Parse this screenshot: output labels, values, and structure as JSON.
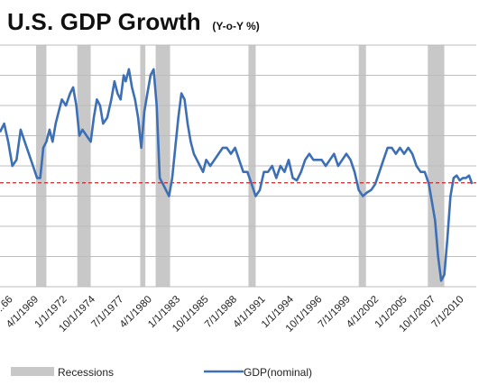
{
  "title": "U.S. GDP Growth",
  "subtitle": "(Y-o-Y %)",
  "chart_data": {
    "type": "line",
    "xlabel": "",
    "ylabel": "",
    "x_tick_labels": [
      "...66",
      "4/1/1969",
      "1/1/1972",
      "10/1/1974",
      "7/1/1977",
      "4/1/1980",
      "1/1/1983",
      "10/1/1985",
      "7/1/1988",
      "4/1/1991",
      "1/1/1994",
      "10/1/1996",
      "7/1/1999",
      "4/1/2002",
      "1/1/2005",
      "10/1/2007",
      "7/1/2010"
    ],
    "x_tick_years": [
      1966.75,
      1969.25,
      1972.0,
      1974.75,
      1977.5,
      1980.25,
      1983.0,
      1985.75,
      1988.5,
      1991.25,
      1994.0,
      1996.75,
      1999.5,
      2002.25,
      2005.0,
      2007.75,
      2010.5
    ],
    "xlim": [
      1966.4,
      2012.6
    ],
    "ylim": [
      -5,
      15
    ],
    "grid": "horizontal lines every 2.5",
    "reference_line": {
      "y": 3.6,
      "style": "dashed",
      "color": "#cc2222"
    },
    "recessions": [
      [
        1969.9,
        1970.9
      ],
      [
        1973.9,
        1975.2
      ],
      [
        1980.0,
        1980.5
      ],
      [
        1981.5,
        1982.9
      ],
      [
        1990.5,
        1991.2
      ],
      [
        2001.2,
        2001.9
      ],
      [
        2007.9,
        2009.5
      ]
    ],
    "series": [
      {
        "name": "GDP(nominal)",
        "color": "#3d6fb5",
        "x": [
          1966.4,
          1966.8,
          1967.2,
          1967.6,
          1968.0,
          1968.4,
          1968.8,
          1969.2,
          1969.6,
          1970.0,
          1970.3,
          1970.6,
          1970.9,
          1971.2,
          1971.5,
          1971.8,
          1972.1,
          1972.4,
          1972.8,
          1973.2,
          1973.5,
          1973.8,
          1974.1,
          1974.4,
          1974.8,
          1975.2,
          1975.5,
          1975.8,
          1976.1,
          1976.4,
          1976.8,
          1977.2,
          1977.5,
          1977.8,
          1978.1,
          1978.4,
          1978.6,
          1978.9,
          1979.2,
          1979.5,
          1979.8,
          1980.1,
          1980.4,
          1980.7,
          1981.0,
          1981.3,
          1981.6,
          1981.9,
          1982.2,
          1982.5,
          1982.8,
          1983.1,
          1983.4,
          1983.7,
          1984.0,
          1984.3,
          1984.6,
          1984.9,
          1985.2,
          1985.5,
          1985.8,
          1986.1,
          1986.4,
          1986.8,
          1987.2,
          1987.6,
          1988.0,
          1988.4,
          1988.8,
          1989.2,
          1989.6,
          1990.0,
          1990.4,
          1990.8,
          1991.2,
          1991.6,
          1992.0,
          1992.4,
          1992.8,
          1993.2,
          1993.6,
          1994.0,
          1994.4,
          1994.8,
          1995.2,
          1995.6,
          1996.0,
          1996.4,
          1996.8,
          1997.2,
          1997.6,
          1998.0,
          1998.4,
          1998.8,
          1999.2,
          1999.6,
          2000.0,
          2000.4,
          2000.8,
          2001.2,
          2001.6,
          2002.0,
          2002.4,
          2002.8,
          2003.2,
          2003.6,
          2004.0,
          2004.4,
          2004.8,
          2005.2,
          2005.6,
          2006.0,
          2006.4,
          2006.8,
          2007.2,
          2007.6,
          2008.0,
          2008.3,
          2008.6,
          2008.9,
          2009.2,
          2009.5,
          2009.8,
          2010.1,
          2010.4,
          2010.7,
          2011.0,
          2011.3,
          2011.6,
          2011.9,
          2012.2
        ],
        "values": [
          7.8,
          8.5,
          7.0,
          5.0,
          5.5,
          8.0,
          7.0,
          6.0,
          5.0,
          4.0,
          4.0,
          6.5,
          7.0,
          8.0,
          7.0,
          8.5,
          9.5,
          10.5,
          10.0,
          11.0,
          11.5,
          10.0,
          7.5,
          8.0,
          7.5,
          7.0,
          9.0,
          10.5,
          10.0,
          8.5,
          9.0,
          10.5,
          12.0,
          11.0,
          10.5,
          12.5,
          12.0,
          13.0,
          11.5,
          10.5,
          9.0,
          6.5,
          9.5,
          11.0,
          12.5,
          13.0,
          10.0,
          4.0,
          3.5,
          3.0,
          2.5,
          4.0,
          6.5,
          9.0,
          11.0,
          10.5,
          8.5,
          7.0,
          6.0,
          5.5,
          5.0,
          4.5,
          5.5,
          5.0,
          5.5,
          6.0,
          6.5,
          6.5,
          6.0,
          6.5,
          5.5,
          4.5,
          4.5,
          3.5,
          2.5,
          3.0,
          4.5,
          4.5,
          5.0,
          4.0,
          5.0,
          4.5,
          5.5,
          4.0,
          3.8,
          4.5,
          5.5,
          6.0,
          5.5,
          5.5,
          5.5,
          5.0,
          5.5,
          6.0,
          5.0,
          5.5,
          6.0,
          5.5,
          4.5,
          3.0,
          2.5,
          2.8,
          3.0,
          3.5,
          4.5,
          5.5,
          6.5,
          6.5,
          6.0,
          6.5,
          6.0,
          6.5,
          6.0,
          5.0,
          4.5,
          4.5,
          3.5,
          2.0,
          0.5,
          -2.5,
          -4.5,
          -4.0,
          -1.0,
          2.5,
          4.0,
          4.2,
          3.8,
          4.0,
          4.0,
          4.2,
          3.5
        ]
      }
    ],
    "legend": {
      "position": "bottom",
      "entries": [
        {
          "label": "Recessions",
          "kind": "bar",
          "color": "#c8c8c8"
        },
        {
          "label": "GDP(nominal)",
          "kind": "line",
          "color": "#3d6fb5"
        }
      ]
    }
  }
}
